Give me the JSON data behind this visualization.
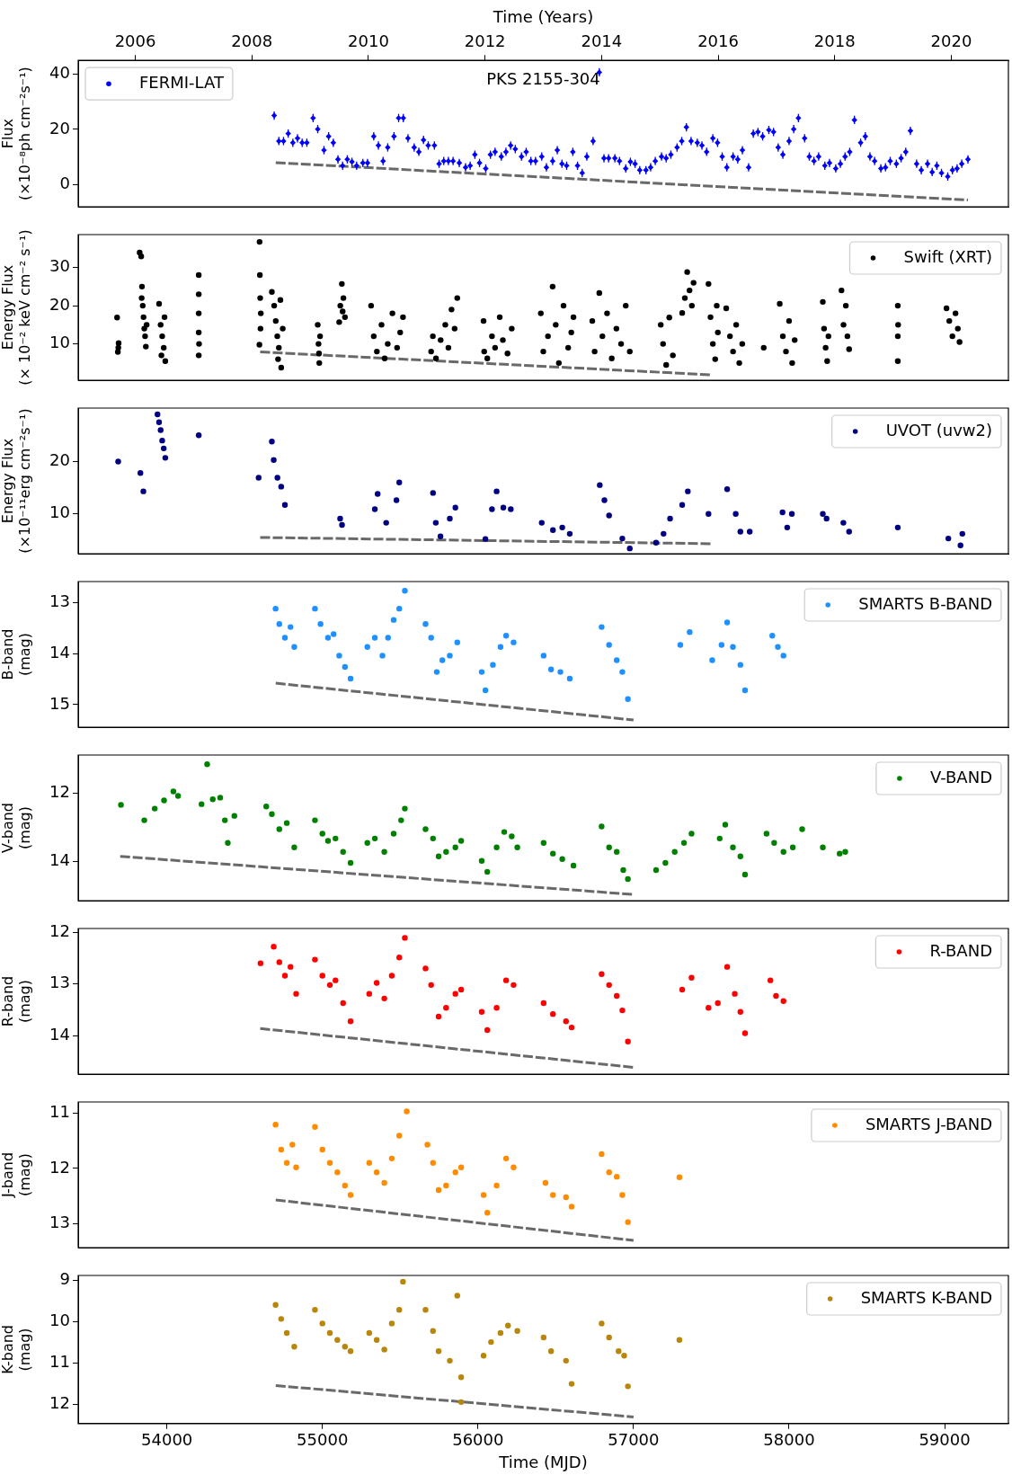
{
  "chart_data": [
    {
      "type": "scatter",
      "x2label": "Time (Years)",
      "ylabel": "Flux\n(×10⁻⁸ph cm⁻²s⁻¹)",
      "annotations": [
        "PKS 2155-304"
      ],
      "xlim": [
        53430,
        59410
      ],
      "x2lim": [
        2005.02,
        2020.98
      ],
      "x2ticks": [
        2006,
        2008,
        2010,
        2012,
        2014,
        2016,
        2018,
        2020
      ],
      "ylim": [
        -7.9,
        44.9
      ],
      "yticks": [
        0,
        20,
        40
      ],
      "tick_labels": "y",
      "legend": "top left",
      "marker": "diamond",
      "series": [
        {
          "name": "FERMI-LAT",
          "color": "#0000ff",
          "x": [
            54690,
            54720,
            54750,
            54780,
            54810,
            54840,
            54870,
            54900,
            54940,
            54970,
            55010,
            55040,
            55070,
            55100,
            55130,
            55160,
            55190,
            55220,
            55260,
            55290,
            55330,
            55360,
            55390,
            55420,
            55460,
            55490,
            55520,
            55550,
            55590,
            55620,
            55650,
            55680,
            55720,
            55750,
            55780,
            55810,
            55840,
            55880,
            55920,
            55950,
            55980,
            56010,
            56050,
            56080,
            56110,
            56150,
            56180,
            56210,
            56240,
            56280,
            56310,
            56340,
            56370,
            56410,
            56440,
            56480,
            56510,
            56540,
            56570,
            56610,
            56640,
            56670,
            56700,
            56740,
            56780,
            56810,
            56840,
            56880,
            56910,
            56950,
            56980,
            57010,
            57040,
            57080,
            57110,
            57140,
            57180,
            57210,
            57240,
            57280,
            57310,
            57340,
            57370,
            57410,
            57440,
            57470,
            57510,
            57540,
            57570,
            57600,
            57640,
            57670,
            57700,
            57740,
            57770,
            57800,
            57830,
            57870,
            57900,
            57930,
            57960,
            58000,
            58030,
            58060,
            58100,
            58130,
            58160,
            58190,
            58230,
            58260,
            58300,
            58330,
            58360,
            58390,
            58420,
            58460,
            58490,
            58520,
            58550,
            58590,
            58620,
            58650,
            58690,
            58720,
            58750,
            58780,
            58820,
            58850,
            58890,
            58920,
            58950,
            58980,
            59020,
            59050,
            59080,
            59110,
            59150
          ],
          "values": [
            25,
            15.8,
            15.8,
            18.5,
            15.2,
            16.8,
            15.2,
            15.2,
            24.1,
            20.1,
            12.5,
            17.5,
            15.2,
            9.2,
            6.9,
            9.2,
            8.3,
            6.9,
            7.9,
            7.9,
            17.5,
            14.2,
            8.6,
            13.5,
            17.5,
            24.1,
            24.1,
            16.8,
            13.5,
            11.9,
            16.2,
            14.2,
            14.2,
            7.6,
            8.6,
            8.6,
            8.6,
            7.9,
            6.3,
            6.9,
            10.9,
            7.9,
            5.9,
            10.9,
            11.9,
            10.2,
            11.9,
            14.2,
            12.9,
            10.2,
            11.9,
            8.6,
            8.6,
            10.2,
            6.3,
            8.6,
            12.5,
            7.6,
            6.9,
            11.9,
            6.9,
            4.3,
            10.2,
            15.8,
            40.6,
            9.6,
            9.6,
            9.6,
            8.6,
            5.9,
            8.3,
            7.6,
            5.3,
            5.3,
            6.3,
            8.6,
            10.2,
            9.6,
            10.9,
            13.5,
            15.8,
            20.8,
            15.8,
            15.2,
            14.2,
            11.9,
            16.8,
            15.2,
            10.2,
            6.3,
            10.2,
            9.2,
            12.5,
            6.3,
            18.5,
            19.1,
            17.5,
            19.8,
            19.1,
            13.5,
            10.9,
            15.8,
            20.1,
            24.1,
            16.8,
            10.2,
            8.6,
            10.2,
            6.9,
            7.9,
            5.9,
            7.6,
            10.2,
            11.9,
            23.4,
            15.2,
            17.5,
            10.2,
            8.6,
            5.9,
            6.3,
            8.6,
            7.6,
            9.6,
            11.9,
            19.5,
            7.6,
            5.3,
            7.6,
            4.6,
            6.9,
            4.3,
            3,
            5.3,
            5.9,
            7.6,
            9.2
          ],
          "errors": [
            1.5,
            1.5,
            1.5,
            1.5,
            1.5,
            1.5,
            1.5,
            1.5,
            1.5,
            1.5,
            1.5,
            1.5,
            1.5,
            1.5,
            1.5,
            1.5,
            1.5,
            1.5,
            1.5,
            1.5,
            1.5,
            1.5,
            1.5,
            1.5,
            1.5,
            1.5,
            1.5,
            1.5,
            1.5,
            1.5,
            1.5,
            1.5,
            1.5,
            1.5,
            1.5,
            1.5,
            1.5,
            1.5,
            1.5,
            1.5,
            1.5,
            1.5,
            1.5,
            1.5,
            1.5,
            1.5,
            1.5,
            1.5,
            1.5,
            1.5,
            1.5,
            1.5,
            1.5,
            1.5,
            1.5,
            1.5,
            1.5,
            1.5,
            1.5,
            1.5,
            1.5,
            1.5,
            1.5,
            1.5,
            1.5,
            1.5,
            1.5,
            1.5,
            1.5,
            1.5,
            1.5,
            1.5,
            1.5,
            1.5,
            1.5,
            1.5,
            1.5,
            1.5,
            1.5,
            1.5,
            1.5,
            1.5,
            1.5,
            1.5,
            1.5,
            1.5,
            1.5,
            1.5,
            1.5,
            1.5,
            1.5,
            1.5,
            1.5,
            1.5,
            1.5,
            1.5,
            1.5,
            1.5,
            1.5,
            1.5,
            1.5,
            1.5,
            1.5,
            1.5,
            1.5,
            1.5,
            1.5,
            1.5,
            1.5,
            1.5,
            1.5,
            1.5,
            1.5,
            1.5,
            1.5,
            1.5,
            1.5,
            1.5,
            1.5,
            1.5,
            1.5,
            1.5,
            1.5,
            1.5,
            1.5,
            1.5,
            1.5,
            1.5,
            1.5,
            1.5,
            1.5,
            1.5,
            1.5,
            1.5,
            1.5,
            1.5,
            1.5
          ]
        },
        {
          "type": "line",
          "color": "#696969",
          "line_style": "dashed",
          "marker": "none",
          "x": [
            54700,
            59150
          ],
          "values": [
            8,
            -5.5
          ]
        }
      ]
    },
    {
      "type": "scatter",
      "ylabel": "Energy Flux\n(× 10⁻² keV cm⁻² s⁻¹)",
      "xlim": [
        53430,
        59410
      ],
      "ylim": [
        0.5,
        38.6
      ],
      "yticks": [
        10,
        20,
        30
      ],
      "tick_labels": "y",
      "legend": "top right",
      "marker": "circle",
      "series": [
        {
          "name": "Swift (XRT)",
          "color": "#000000",
          "x": [
            53680,
            53690,
            53685,
            53688,
            53825,
            53835,
            53840,
            53845,
            53850,
            53855,
            53860,
            53865,
            53870,
            53838,
            53950,
            53960,
            53970,
            53980,
            53990,
            53985,
            53965,
            54205,
            54205,
            54205,
            54205,
            54205,
            54207,
            54596,
            54598,
            54600,
            54602,
            54595,
            54604,
            54675,
            54690,
            54700,
            54710,
            54720,
            54735,
            54745,
            54715,
            54730,
            54970,
            54975,
            54980,
            54985,
            54978,
            55108,
            55115,
            55125,
            55135,
            55145,
            55130,
            55313,
            55330,
            55350,
            55380,
            55400,
            55420,
            55450,
            55480,
            55500,
            55518,
            55699,
            55710,
            55730,
            55760,
            55790,
            55810,
            55830,
            55850,
            55867,
            56036,
            56040,
            56060,
            56090,
            56110,
            56140,
            56160,
            56190,
            56217,
            56404,
            56420,
            56450,
            56480,
            56500,
            56520,
            56550,
            56580,
            56600,
            56614,
            56735,
            56750,
            56780,
            56800,
            56830,
            56860,
            56890,
            56920,
            56950,
            56976,
            57175,
            57190,
            57210,
            57230,
            57253,
            57313,
            57330,
            57345,
            57360,
            57375,
            57386,
            57482,
            57495,
            57510,
            57525,
            57535,
            57542,
            57596,
            57620,
            57640,
            57660,
            57680,
            57699,
            57837,
            57940,
            57960,
            57980,
            58000,
            58020,
            58036,
            58217,
            58225,
            58235,
            58245,
            58253,
            58337,
            58350,
            58365,
            58375,
            58386,
            58699,
            58699,
            58699,
            58701,
            59012,
            59030,
            59050,
            59070,
            59085,
            59096
          ],
          "values": [
            16.9,
            10.2,
            7.9,
            9,
            33.9,
            32.9,
            25,
            20,
            17,
            14,
            12,
            9.3,
            15,
            22,
            20.5,
            15,
            12,
            9,
            5.5,
            17,
            7,
            28,
            23,
            18,
            13,
            7,
            10,
            36.7,
            28,
            22,
            14,
            9.8,
            18,
            23.6,
            20,
            16,
            12,
            9,
            3.8,
            14,
            6,
            21.5,
            15,
            10,
            5,
            12,
            7.5,
            15.7,
            20,
            25.7,
            22,
            17,
            18.5,
            20,
            12,
            8,
            15,
            6.2,
            10,
            18,
            9,
            13,
            17,
            8,
            12,
            6.2,
            11,
            15,
            9,
            19,
            14,
            22,
            16,
            8,
            6.2,
            12,
            9,
            17,
            11,
            7.5,
            14,
            18,
            8,
            12,
            25,
            15,
            5,
            20,
            9,
            13,
            17,
            16,
            8,
            23.3,
            12,
            18,
            6.2,
            14,
            10,
            20,
            8,
            15,
            10,
            4.5,
            16.9,
            7,
            18.1,
            22,
            28.8,
            24,
            20,
            26,
            25.7,
            17,
            10,
            6,
            20,
            13,
            19.3,
            12,
            8,
            15,
            5,
            10,
            9,
            20.5,
            12,
            8,
            16,
            5,
            11,
            21,
            14,
            9,
            5.5,
            12,
            24,
            15,
            20,
            12,
            8.6,
            20,
            12,
            5.5,
            15,
            19.3,
            16,
            12,
            18,
            14,
            10.5
          ]
        },
        {
          "type": "line",
          "color": "#696969",
          "line_style": "dashed",
          "marker": "none",
          "x": [
            54600,
            57500
          ],
          "values": [
            7.9,
            1.9
          ]
        }
      ]
    },
    {
      "type": "scatter",
      "ylabel": "Energy Flux\n(×10⁻¹¹erg cm⁻²s⁻¹)",
      "xlim": [
        53430,
        59410
      ],
      "ylim": [
        2.4,
        30.2
      ],
      "yticks": [
        10,
        20
      ],
      "tick_labels": "y",
      "legend": "top right",
      "marker": "circle",
      "series": [
        {
          "name": "UVOT (uvw2)",
          "color": "#000080",
          "x": [
            53687,
            53830,
            53849,
            53940,
            53950,
            53960,
            53970,
            53980,
            53990,
            54205,
            54590,
            54675,
            54687,
            54711,
            54735,
            54759,
            55114,
            55126,
            55337,
            55355,
            55410,
            55476,
            55494,
            55711,
            55729,
            55759,
            55819,
            55855,
            56048,
            56090,
            56120,
            56163,
            56211,
            56410,
            56482,
            56542,
            56590,
            56783,
            56813,
            56843,
            56928,
            56976,
            57145,
            57193,
            57235,
            57313,
            57349,
            57482,
            57602,
            57657,
            57687,
            57747,
            57958,
            57988,
            58018,
            58217,
            58241,
            58349,
            58386,
            58699,
            59024,
            59102,
            59114
          ],
          "values": [
            20,
            17.8,
            14.3,
            29,
            27.5,
            26,
            24,
            22.5,
            20.7,
            25,
            16.9,
            23.8,
            20.3,
            16.9,
            15.2,
            11.7,
            9.1,
            7.9,
            10.9,
            13.8,
            8.3,
            12.6,
            16,
            14,
            8.3,
            5.7,
            9.1,
            11.2,
            5.2,
            10.9,
            14.3,
            11.2,
            10.9,
            8.3,
            6.9,
            7.4,
            6.2,
            15.5,
            12.6,
            9.7,
            5.3,
            3.4,
            4.5,
            6.2,
            9.1,
            11.7,
            14.3,
            10,
            14.7,
            10,
            6.6,
            6.6,
            10.3,
            7.4,
            10,
            10,
            9.1,
            8.3,
            6.6,
            7.4,
            5.3,
            4,
            6.2
          ]
        },
        {
          "type": "line",
          "color": "#696969",
          "line_style": "dashed",
          "marker": "none",
          "x": [
            54600,
            57500
          ],
          "values": [
            5.5,
            4.3
          ]
        }
      ]
    },
    {
      "type": "scatter",
      "ylabel": "B-band\n(mag)",
      "xlim": [
        53430,
        59410
      ],
      "ylim": [
        15.44,
        12.59
      ],
      "yticks": [
        13,
        14,
        15
      ],
      "tick_labels": "y",
      "legend": "top right",
      "marker": "circle",
      "series": [
        {
          "name": "SMARTS B-BAND",
          "color": "#1e90ff",
          "x": [
            54699,
            54723,
            54759,
            54795,
            54819,
            54952,
            54988,
            55036,
            55072,
            55108,
            55145,
            55181,
            55289,
            55337,
            55386,
            55422,
            55458,
            55494,
            55530,
            55663,
            55699,
            55735,
            55771,
            55819,
            55867,
            56024,
            56048,
            56096,
            56145,
            56181,
            56229,
            56422,
            56470,
            56530,
            56590,
            56795,
            56843,
            56892,
            56928,
            56964,
            57301,
            57361,
            57506,
            57566,
            57602,
            57639,
            57687,
            57717,
            57892,
            57928,
            57964
          ],
          "values": [
            13.12,
            13.42,
            13.69,
            13.48,
            13.87,
            13.12,
            13.42,
            13.69,
            13.62,
            14.04,
            14.26,
            14.49,
            13.87,
            13.69,
            14.04,
            13.69,
            13.34,
            13.12,
            12.77,
            13.42,
            13.69,
            14.36,
            14.13,
            14.04,
            13.78,
            14.36,
            14.72,
            14.22,
            13.87,
            13.65,
            13.78,
            14.04,
            14.31,
            14.36,
            14.49,
            13.48,
            13.83,
            14.13,
            14.36,
            14.89,
            13.83,
            13.58,
            14.13,
            13.83,
            13.39,
            13.87,
            14.22,
            14.72,
            13.65,
            13.87,
            14.04
          ]
        },
        {
          "type": "line",
          "color": "#696969",
          "line_style": "dashed",
          "marker": "none",
          "x": [
            54700,
            57000
          ],
          "values": [
            14.58,
            15.3
          ]
        }
      ]
    },
    {
      "type": "scatter",
      "ylabel": "V-band\n(mag)",
      "xlim": [
        53430,
        59410
      ],
      "ylim": [
        15.13,
        10.89
      ],
      "yticks": [
        12,
        14
      ],
      "tick_labels": "y",
      "legend": "top right",
      "marker": "circle",
      "series": [
        {
          "name": "V-BAND",
          "color": "#008000",
          "x": [
            53705,
            53855,
            53922,
            53982,
            54042,
            54072,
            54223,
            54259,
            54295,
            54343,
            54373,
            54392,
            54434,
            54639,
            54675,
            54723,
            54771,
            54819,
            54952,
            55000,
            55036,
            55084,
            55133,
            55181,
            55289,
            55337,
            55398,
            55458,
            55506,
            55530,
            55663,
            55711,
            55747,
            55795,
            55855,
            55892,
            56024,
            56060,
            56120,
            56169,
            56217,
            56253,
            56422,
            56482,
            56542,
            56614,
            56795,
            56843,
            56892,
            56934,
            56964,
            57145,
            57205,
            57265,
            57325,
            57373,
            57554,
            57590,
            57639,
            57687,
            57717,
            57855,
            57904,
            57964,
            58024,
            58084,
            58217,
            58325,
            58361
          ],
          "values": [
            12.34,
            12.79,
            12.45,
            12.21,
            11.95,
            12.08,
            12.32,
            11.16,
            12.18,
            12.13,
            12.79,
            13.45,
            12.66,
            12.39,
            12.61,
            13.05,
            12.87,
            13.58,
            12.79,
            13.18,
            13.39,
            13.32,
            13.71,
            14.03,
            13.45,
            13.32,
            13.71,
            13.18,
            12.79,
            12.45,
            13.05,
            13.32,
            13.84,
            13.71,
            13.58,
            13.39,
            13.97,
            14.29,
            13.58,
            13.13,
            13.26,
            13.58,
            13.45,
            13.76,
            13.92,
            14.11,
            12.97,
            13.58,
            13.71,
            14.24,
            14.5,
            14.24,
            14.03,
            13.71,
            13.45,
            13.18,
            13.32,
            12.92,
            13.58,
            13.84,
            14.37,
            13.18,
            13.45,
            13.71,
            13.58,
            13.05,
            13.58,
            13.76,
            13.71
          ]
        },
        {
          "type": "line",
          "color": "#696969",
          "line_style": "dashed",
          "marker": "none",
          "x": [
            53700,
            57000
          ],
          "values": [
            13.84,
            14.95
          ]
        }
      ]
    },
    {
      "type": "scatter",
      "ylabel": "R-band\n(mag)",
      "xlim": [
        53430,
        59410
      ],
      "ylim": [
        14.74,
        11.93
      ],
      "yticks": [
        12,
        13,
        14
      ],
      "tick_labels": "y",
      "legend": "top right",
      "marker": "circle",
      "series": [
        {
          "name": "R-BAND",
          "color": "#ff0000",
          "x": [
            54602,
            54687,
            54723,
            54759,
            54795,
            54831,
            54952,
            55000,
            55048,
            55084,
            55133,
            55181,
            55301,
            55349,
            55398,
            55446,
            55494,
            55530,
            55663,
            55699,
            55747,
            55795,
            55855,
            55892,
            56024,
            56060,
            56120,
            56181,
            56229,
            56422,
            56482,
            56566,
            56602,
            56795,
            56843,
            56892,
            56928,
            56964,
            57313,
            57373,
            57482,
            57542,
            57602,
            57651,
            57687,
            57717,
            57880,
            57916,
            57964
          ],
          "values": [
            12.6,
            12.28,
            12.58,
            12.84,
            12.67,
            13.19,
            12.53,
            12.84,
            13.02,
            12.93,
            13.37,
            13.72,
            13.19,
            12.98,
            13.28,
            12.84,
            12.49,
            12.11,
            12.7,
            13.02,
            13.63,
            13.46,
            13.19,
            13.11,
            13.54,
            13.89,
            13.46,
            12.93,
            13.02,
            13.37,
            13.58,
            13.72,
            13.84,
            12.81,
            13.02,
            13.23,
            13.51,
            14.11,
            13.11,
            12.88,
            13.46,
            13.37,
            12.67,
            13.19,
            13.54,
            13.95,
            12.93,
            13.23,
            13.33
          ]
        },
        {
          "type": "line",
          "color": "#696969",
          "line_style": "dashed",
          "marker": "none",
          "x": [
            54600,
            57000
          ],
          "values": [
            13.86,
            14.61
          ]
        }
      ]
    },
    {
      "type": "scatter",
      "ylabel": "J-band\n(mag)",
      "xlim": [
        53430,
        59410
      ],
      "ylim": [
        13.43,
        10.8
      ],
      "yticks": [
        11,
        12,
        13
      ],
      "tick_labels": "y",
      "legend": "top right",
      "marker": "circle",
      "series": [
        {
          "name": "SMARTS J-BAND",
          "color": "#ff8c00",
          "x": [
            54699,
            54735,
            54771,
            54807,
            54831,
            54952,
            55000,
            55048,
            55096,
            55145,
            55181,
            55301,
            55349,
            55398,
            55446,
            55494,
            55542,
            55675,
            55711,
            55747,
            55795,
            55855,
            55892,
            56036,
            56060,
            56120,
            56181,
            56229,
            56434,
            56482,
            56566,
            56602,
            56795,
            56843,
            56892,
            56928,
            56964,
            57295
          ],
          "values": [
            11.21,
            11.66,
            11.9,
            11.57,
            11.98,
            11.25,
            11.66,
            11.9,
            12.07,
            12.31,
            12.48,
            11.9,
            12.07,
            12.26,
            11.82,
            11.41,
            10.97,
            11.57,
            11.9,
            12.39,
            12.31,
            12.07,
            11.98,
            12.48,
            12.8,
            12.31,
            11.82,
            11.98,
            12.26,
            12.48,
            12.52,
            12.69,
            11.74,
            12.07,
            12.15,
            12.48,
            12.97,
            12.16
          ]
        },
        {
          "type": "line",
          "color": "#696969",
          "line_style": "dashed",
          "marker": "none",
          "x": [
            54700,
            57000
          ],
          "values": [
            12.57,
            13.3
          ]
        }
      ]
    },
    {
      "type": "scatter",
      "xlabel": "Time (MJD)",
      "ylabel": "K-band\n(mag)",
      "xlim": [
        53430,
        59410
      ],
      "xticks": [
        54000,
        55000,
        56000,
        57000,
        58000,
        59000
      ],
      "ylim": [
        12.47,
        8.89
      ],
      "yticks": [
        9,
        10,
        11,
        12
      ],
      "legend": "top right",
      "marker": "circle",
      "series": [
        {
          "name": "SMARTS K-BAND",
          "color": "#b8860b",
          "x": [
            54699,
            54735,
            54771,
            54819,
            54952,
            55000,
            55048,
            55096,
            55145,
            55181,
            55301,
            55349,
            55398,
            55446,
            55494,
            55518,
            55663,
            55711,
            55747,
            55819,
            55867,
            55892,
            55892,
            56036,
            56084,
            56145,
            56193,
            56253,
            56422,
            56470,
            56566,
            56602,
            56795,
            56843,
            56904,
            56940,
            56964,
            57295
          ],
          "values": [
            9.6,
            9.94,
            10.28,
            10.61,
            9.72,
            10.05,
            10.28,
            10.45,
            10.61,
            10.72,
            10.28,
            10.45,
            10.68,
            10.05,
            9.72,
            9.04,
            9.72,
            10.23,
            10.72,
            10.95,
            9.38,
            11.35,
            11.95,
            10.83,
            10.5,
            10.28,
            10.1,
            10.23,
            10.39,
            10.72,
            10.95,
            11.51,
            10.05,
            10.39,
            10.72,
            10.83,
            11.57,
            10.45
          ]
        },
        {
          "type": "line",
          "color": "#696969",
          "line_style": "dashed",
          "marker": "none",
          "x": [
            54700,
            57000
          ],
          "values": [
            11.55,
            12.31
          ]
        }
      ]
    }
  ]
}
